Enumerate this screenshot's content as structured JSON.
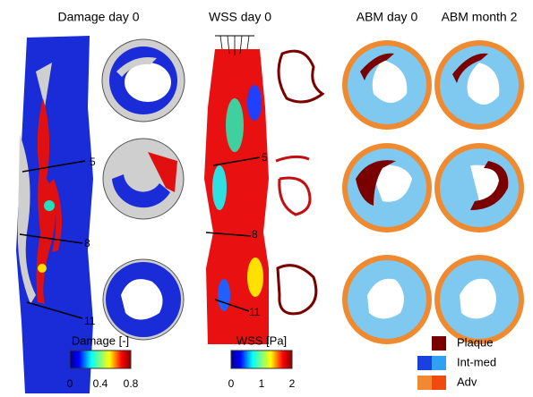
{
  "titles": [
    "Damage day 0",
    "WSS day 0",
    "ABM day 0",
    "ABM month 2"
  ],
  "slice_labels": {
    "damage": [
      5,
      8,
      11
    ],
    "wss": [
      5,
      8,
      11
    ]
  },
  "colorbars": {
    "damage": {
      "title": "Damage [-]",
      "ticks": [
        0,
        0.4,
        0.8
      ]
    },
    "wss": {
      "title": "WSS [Pa]",
      "ticks": [
        0,
        1,
        2
      ]
    }
  },
  "legend": [
    "Plaque",
    "Int-med",
    "Adv"
  ]
}
